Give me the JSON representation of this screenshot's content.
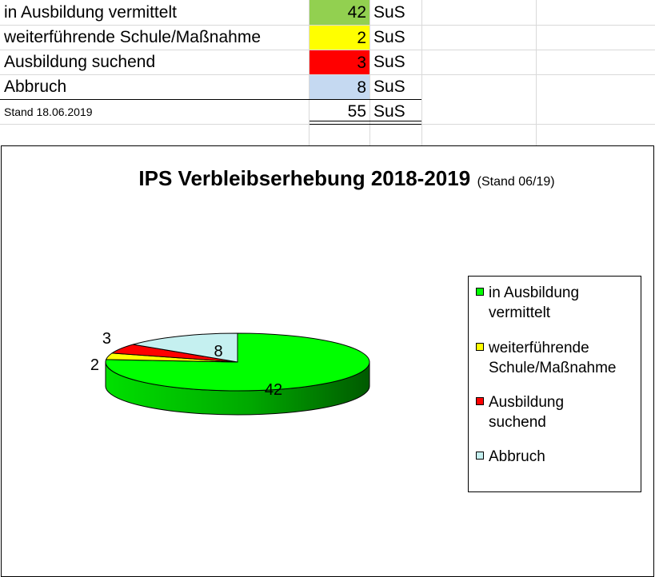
{
  "table": {
    "rows": [
      {
        "label": "in Ausbildung vermittelt",
        "value": "42",
        "unit": "SuS",
        "color": "#92d050"
      },
      {
        "label": "weiterführende Schule/Maßnahme",
        "value": "2",
        "unit": "SuS",
        "color": "#ffff00"
      },
      {
        "label": "Ausbildung suchend",
        "value": "3",
        "unit": "SuS",
        "color": "#ff0000"
      },
      {
        "label": "Abbruch",
        "value": "8",
        "unit": "SuS",
        "color": "#c5d9f1"
      }
    ],
    "total": {
      "label": "Stand 18.06.2019",
      "value": "55",
      "unit": "SuS"
    }
  },
  "chart_data": {
    "type": "pie",
    "title": "IPS Verbleibserhebung 2018-2019",
    "subtitle": "(Stand 06/19)",
    "categories": [
      "in Ausbildung vermittelt",
      "weiterführende Schule/Maßnahme",
      "Ausbildung suchend",
      "Abbruch"
    ],
    "legend_labels": [
      [
        "in Ausbildung",
        "vermittelt"
      ],
      [
        "weiterführende",
        "Schule/Maßnahme"
      ],
      [
        "Ausbildung",
        "suchend"
      ],
      [
        "Abbruch"
      ]
    ],
    "values": [
      42,
      2,
      3,
      8
    ],
    "colors": [
      "#00ff00",
      "#ffff00",
      "#ff0000",
      "#c5f0f0"
    ],
    "data_labels": [
      "42",
      "2",
      "3",
      "8"
    ],
    "legend_position": "right",
    "style": "3d"
  }
}
